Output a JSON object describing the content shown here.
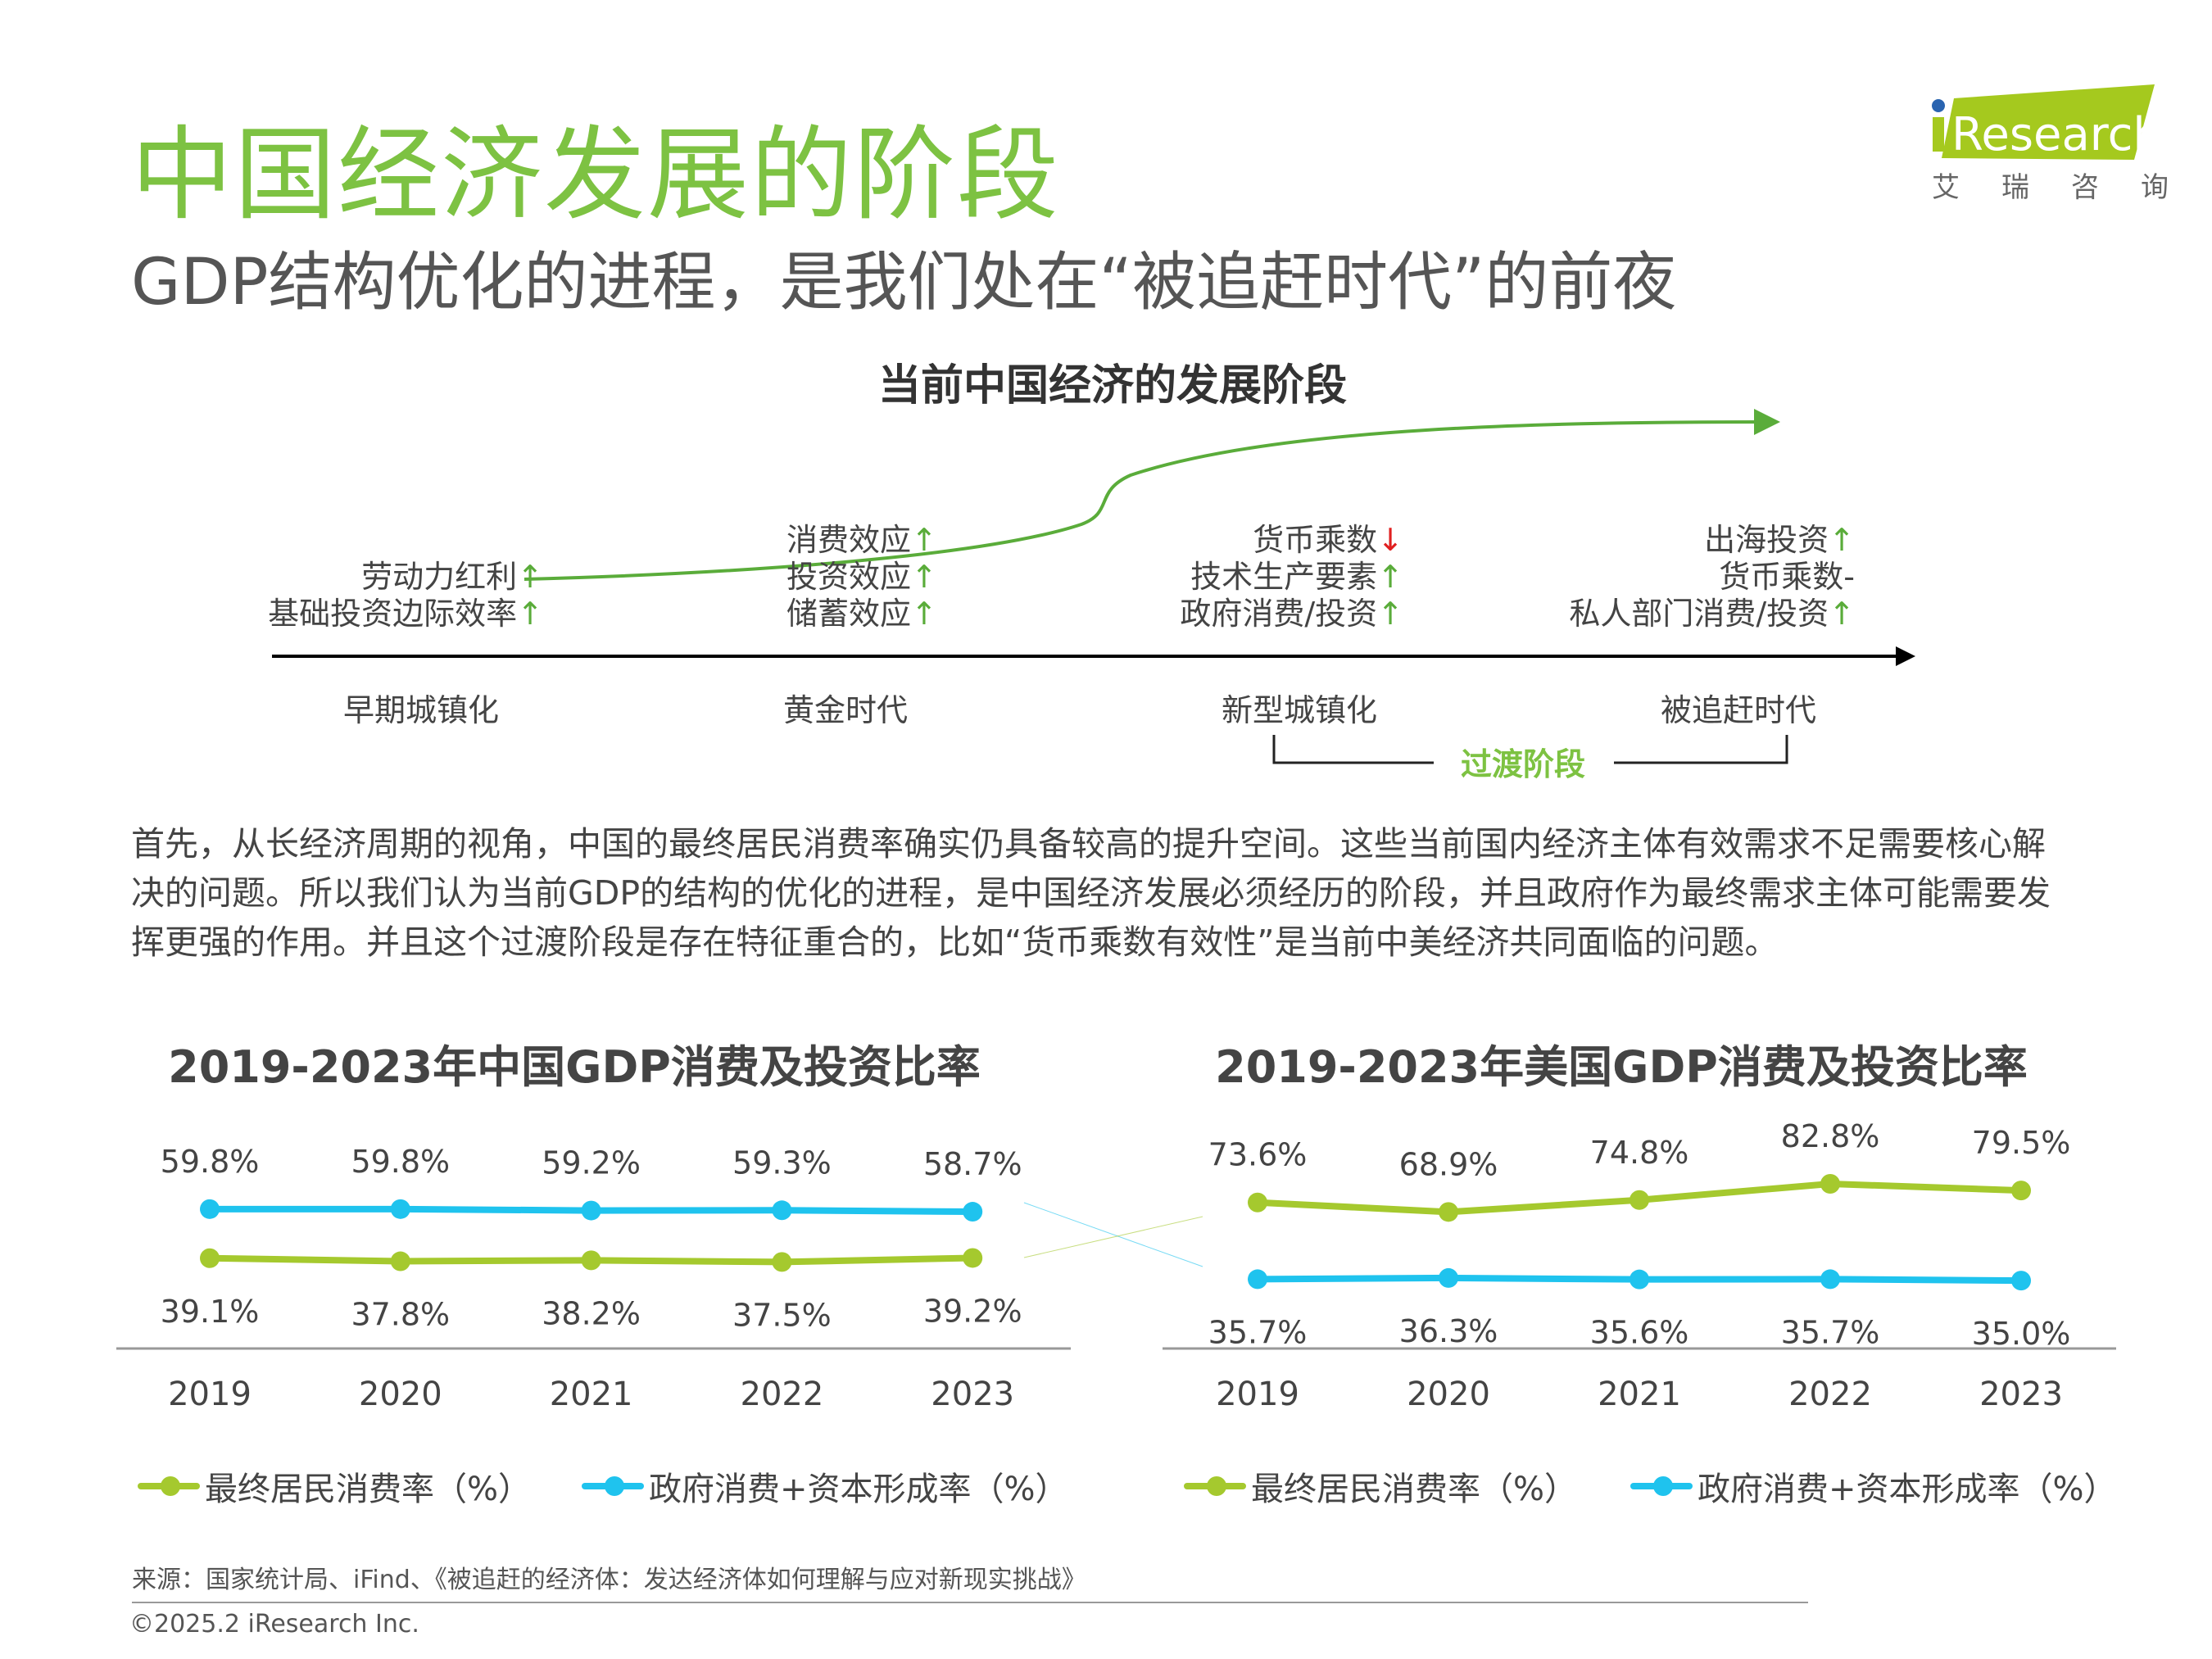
{
  "header": {
    "title": "中国经济发展的阶段",
    "subtitle": "GDP结构优化的进程，是我们处在“被追赶时代”的前夜",
    "logo": {
      "text": "iResearch",
      "cn": [
        "艾",
        "瑞",
        "咨",
        "询"
      ],
      "color": "#a5c91e",
      "dot_color": "#2a64b0"
    }
  },
  "diagram": {
    "title": "当前中国经济的发展阶段",
    "groups": [
      {
        "lines": [
          {
            "text": "劳动力红利",
            "arrow": "↑",
            "dir": "up"
          },
          {
            "text": "基础投资边际效率",
            "arrow": "↑",
            "dir": "up"
          }
        ]
      },
      {
        "lines": [
          {
            "text": "消费效应",
            "arrow": "↑",
            "dir": "up"
          },
          {
            "text": "投资效应",
            "arrow": "↑",
            "dir": "up"
          },
          {
            "text": "储蓄效应",
            "arrow": "↑",
            "dir": "up"
          }
        ]
      },
      {
        "lines": [
          {
            "text": "货币乘数",
            "arrow": "↓",
            "dir": "down"
          },
          {
            "text": "技术生产要素",
            "arrow": "↑",
            "dir": "up"
          },
          {
            "text": "政府消费/投资",
            "arrow": "↑",
            "dir": "up"
          }
        ]
      },
      {
        "lines": [
          {
            "text": "出海投资",
            "arrow": "↑",
            "dir": "up"
          },
          {
            "text": "货币乘数-",
            "arrow": "",
            "dir": "none"
          },
          {
            "text": "私人部门消费/投资",
            "arrow": "↑",
            "dir": "up"
          }
        ]
      }
    ],
    "stages": [
      "早期城镇化",
      "黄金时代",
      "新型城镇化",
      "被追赶时代"
    ],
    "transition_label": "过渡阶段"
  },
  "paragraph": [
    "首先，从长经济周期的视角，中国的最终居民消费率确实仍具备较高的提升空间。这些当前国内经济主体有效需求不足需要核心解",
    "决的问题。所以我们认为当前GDP的结构的优化的进程，是中国经济发展必须经历的阶段，并且政府作为最终需求主体可能需要发",
    "挥更强的作用。并且这个过渡阶段是存在特征重合的，比如“货币乘数有效性”是当前中美经济共同面临的问题。"
  ],
  "chart_data": [
    {
      "type": "line",
      "title": "2019-2023年中国GDP消费及投资比率",
      "categories": [
        "2019",
        "2020",
        "2021",
        "2022",
        "2023"
      ],
      "series": [
        {
          "name": "最终居民消费率（%）",
          "values": [
            39.1,
            37.8,
            38.2,
            37.5,
            39.2
          ],
          "labels": [
            "39.1%",
            "37.8%",
            "38.2%",
            "37.5%",
            "39.2%"
          ],
          "color": "#a5c92e"
        },
        {
          "name": "政府消费+资本形成率（%）",
          "values": [
            59.8,
            59.8,
            59.2,
            59.3,
            58.7
          ],
          "labels": [
            "59.8%",
            "59.8%",
            "59.2%",
            "59.3%",
            "58.7%"
          ],
          "color": "#1fc3ee"
        }
      ],
      "ylim": [
        10,
        86
      ],
      "grid": false,
      "legend": "bottom"
    },
    {
      "type": "line",
      "title": "2019-2023年美国GDP消费及投资比率",
      "categories": [
        "2019",
        "2020",
        "2021",
        "2022",
        "2023"
      ],
      "series": [
        {
          "name": "最终居民消费率（%）",
          "values": [
            73.6,
            68.9,
            74.8,
            82.8,
            79.5
          ],
          "labels": [
            "73.6%",
            "68.9%",
            "74.8%",
            "82.8%",
            "79.5%"
          ],
          "color": "#a5c92e"
        },
        {
          "name": "政府消费+资本形成率（%）",
          "values": [
            35.7,
            36.3,
            35.6,
            35.7,
            35.0
          ],
          "labels": [
            "35.7%",
            "36.3%",
            "35.6%",
            "35.7%",
            "35.0%"
          ],
          "color": "#1fc3ee"
        }
      ],
      "ylim": [
        12,
        101
      ],
      "grid": false,
      "legend": "bottom"
    }
  ],
  "footer": {
    "source": "来源：国家统计局、iFind、《被追赶的经济体：发达经济体如何理解与应对新现实挑战》",
    "copyright": "©2025.2 iResearch Inc."
  }
}
